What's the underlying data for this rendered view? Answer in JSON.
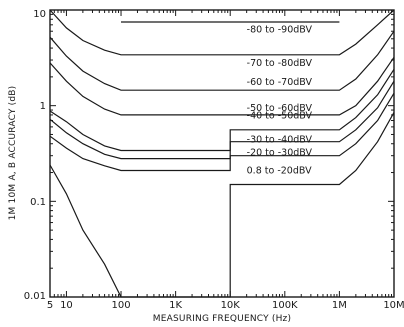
{
  "chart_data": {
    "type": "line",
    "title": "",
    "xlabel": "MEASURING FREQUENCY (Hz)",
    "ylabel": "1M 10M A, B ACCURACY (dB)",
    "xscale": "log",
    "yscale": "log",
    "xlim": [
      5,
      10000000
    ],
    "ylim": [
      0.01,
      10
    ],
    "grid": false,
    "x_ticks": [
      {
        "value": 5,
        "label": "5"
      },
      {
        "value": 10,
        "label": "10"
      },
      {
        "value": 100,
        "label": "100"
      },
      {
        "value": 1000,
        "label": "1K"
      },
      {
        "value": 10000,
        "label": "10K"
      },
      {
        "value": 100000,
        "label": "100K"
      },
      {
        "value": 1000000,
        "label": "1M"
      },
      {
        "value": 10000000,
        "label": "10M"
      }
    ],
    "y_ticks": [
      {
        "value": 10,
        "label": "10"
      },
      {
        "value": 1,
        "label": "1"
      },
      {
        "value": 0.1,
        "label": "0.1"
      },
      {
        "value": 0.01,
        "label": "0.01"
      }
    ],
    "series": [
      {
        "name": "-80 to -90dBV",
        "label_at": {
          "x": 20000,
          "y": 5.8
        },
        "points": [
          [
            100,
            7.5
          ],
          [
            1000000,
            7.5
          ]
        ]
      },
      {
        "name": "-70 to -80dBV",
        "label_at": {
          "x": 20000,
          "y": 2.6
        },
        "points": [
          [
            5,
            10
          ],
          [
            10,
            6.5
          ],
          [
            20,
            4.8
          ],
          [
            50,
            3.8
          ],
          [
            100,
            3.4
          ],
          [
            1000000,
            3.4
          ],
          [
            2000000,
            4.4
          ],
          [
            5000000,
            7.0
          ],
          [
            10000000,
            10
          ]
        ]
      },
      {
        "name": "-60 to -70dBV",
        "label_at": {
          "x": 20000,
          "y": 1.65
        },
        "points": [
          [
            5,
            5.2
          ],
          [
            10,
            3.3
          ],
          [
            20,
            2.3
          ],
          [
            50,
            1.7
          ],
          [
            100,
            1.45
          ],
          [
            1000000,
            1.45
          ],
          [
            2000000,
            1.9
          ],
          [
            5000000,
            3.4
          ],
          [
            10000000,
            6.0
          ]
        ]
      },
      {
        "name": "-50 to -60dBV",
        "label_at": {
          "x": 20000,
          "y": 0.88
        },
        "points": [
          [
            5,
            2.8
          ],
          [
            10,
            1.8
          ],
          [
            20,
            1.25
          ],
          [
            50,
            0.92
          ],
          [
            100,
            0.8
          ],
          [
            1000000,
            0.8
          ],
          [
            2000000,
            1.0
          ],
          [
            5000000,
            1.8
          ],
          [
            10000000,
            3.2
          ]
        ]
      },
      {
        "name": "-40 to -50dBV",
        "label_at": {
          "x": 20000,
          "y": 0.73
        },
        "points": [
          [
            5,
            0.88
          ],
          [
            10,
            0.68
          ],
          [
            20,
            0.5
          ],
          [
            50,
            0.38
          ],
          [
            100,
            0.34
          ],
          [
            10000,
            0.34
          ],
          [
            10000,
            0.56
          ],
          [
            1000000,
            0.56
          ],
          [
            2000000,
            0.75
          ],
          [
            5000000,
            1.3
          ],
          [
            10000000,
            2.4
          ]
        ]
      },
      {
        "name": "-30 to -40dBV",
        "label_at": {
          "x": 20000,
          "y": 0.41
        },
        "points": [
          [
            5,
            0.72
          ],
          [
            10,
            0.52
          ],
          [
            20,
            0.4
          ],
          [
            50,
            0.31
          ],
          [
            100,
            0.28
          ],
          [
            10000,
            0.28
          ],
          [
            10000,
            0.42
          ],
          [
            1000000,
            0.42
          ],
          [
            2000000,
            0.56
          ],
          [
            5000000,
            0.95
          ],
          [
            10000000,
            1.8
          ]
        ]
      },
      {
        "name": "-20 to -30dBV",
        "label_at": {
          "x": 20000,
          "y": 0.3
        },
        "points": [
          [
            5,
            0.48
          ],
          [
            10,
            0.36
          ],
          [
            20,
            0.28
          ],
          [
            50,
            0.235
          ],
          [
            100,
            0.21
          ],
          [
            10000,
            0.21
          ],
          [
            10000,
            0.3
          ],
          [
            1000000,
            0.3
          ],
          [
            2000000,
            0.4
          ],
          [
            5000000,
            0.7
          ],
          [
            10000000,
            1.35
          ]
        ]
      },
      {
        "name": "0.8 to -20dBV",
        "label_at": {
          "x": 20000,
          "y": 0.195
        },
        "points": [
          [
            5,
            0.24
          ],
          [
            10,
            0.12
          ],
          [
            20,
            0.05
          ],
          [
            50,
            0.022
          ],
          [
            100,
            0.01
          ],
          [
            10000,
            0.01
          ],
          [
            10000,
            0.15
          ],
          [
            1000000,
            0.15
          ],
          [
            2000000,
            0.21
          ],
          [
            5000000,
            0.42
          ],
          [
            10000000,
            0.85
          ]
        ]
      }
    ]
  }
}
